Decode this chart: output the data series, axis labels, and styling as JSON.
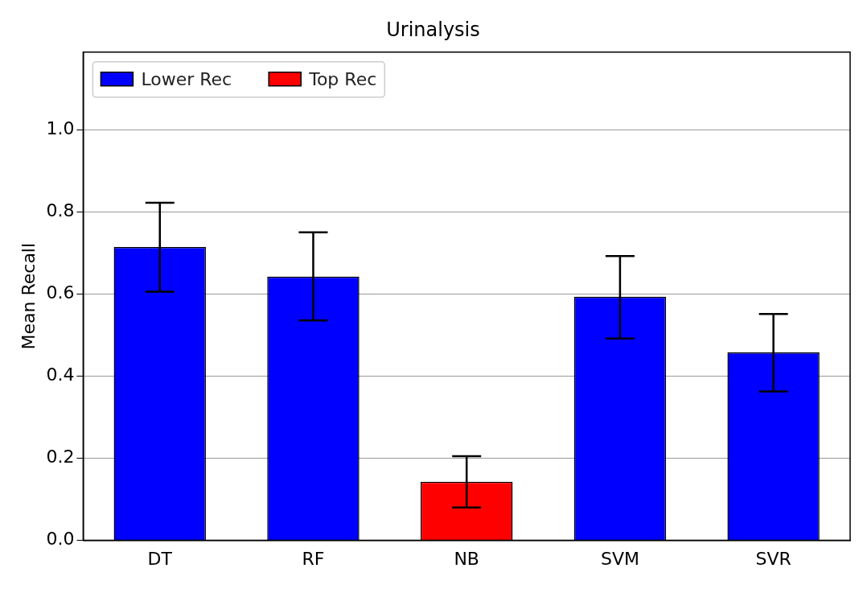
{
  "chart_data": {
    "type": "bar",
    "title": "Urinalysis",
    "ylabel": "Mean Recall",
    "categories": [
      "DT",
      "RF",
      "NB",
      "SVM",
      "SVR"
    ],
    "series": [
      {
        "name": "Lower Rec",
        "color": "#0000ff",
        "values": [
          0.715,
          0.643,
          null,
          0.594,
          0.458
        ],
        "errors": [
          [
            0.606,
            0.823
          ],
          [
            0.536,
            0.751
          ],
          null,
          [
            0.492,
            0.693
          ],
          [
            0.363,
            0.552
          ]
        ]
      },
      {
        "name": "Top Rec",
        "color": "#ff0000",
        "values": [
          null,
          null,
          0.143,
          null,
          null
        ],
        "errors": [
          null,
          null,
          [
            0.08,
            0.205
          ],
          null,
          null
        ]
      }
    ],
    "ylim": [
      0,
      1.19
    ],
    "yticks": [
      {
        "value": 0,
        "label": "0.0"
      },
      0.2,
      0.4,
      0.6,
      0.8,
      {
        "value": 1,
        "label": "1.0"
      }
    ],
    "grid": "y",
    "legend": "top left"
  }
}
